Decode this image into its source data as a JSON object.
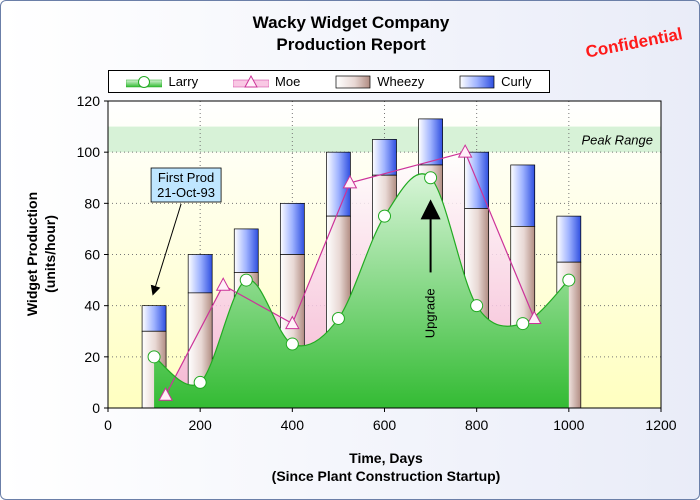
{
  "chart_data": {
    "type": "bar",
    "title": "Wacky Widget Company",
    "subtitle": "Production Report",
    "stamp": "Confidential",
    "xlabel": "Time, Days",
    "xlabel2": "(Since Plant Construction Startup)",
    "ylabel": "Widget Production",
    "ylabel2": "(units/hour)",
    "xlim": [
      0,
      1200
    ],
    "ylim": [
      0,
      120
    ],
    "xticks": [
      "0",
      "200",
      "400",
      "600",
      "800",
      "1000",
      "1200"
    ],
    "yticks": [
      "0",
      "20",
      "40",
      "60",
      "80",
      "100",
      "120"
    ],
    "grid": true,
    "legend_position": "top",
    "legend": [
      "Larry",
      "Moe",
      "Wheezy",
      "Curly"
    ],
    "colors": {
      "larry_fill_top": "#d8f5d8",
      "larry_fill_bottom": "#33bb33",
      "larry_line": "#22aa22",
      "moe_line": "#cc3399",
      "moe_fill": "#f9c8e4",
      "wheezy_top": "#ffffff",
      "wheezy_bottom": "#c9a9a0",
      "curly_top": "#ffffff",
      "curly_bottom": "#4466ee",
      "plot_bg_top": "#ffffff",
      "plot_bg_bottom": "#ffffc0",
      "peak_band": "#d7f2d7",
      "stamp_color": "#ff1a1a",
      "note_bg": "#bfe6ff"
    },
    "series": [
      {
        "name": "Larry",
        "kind": "spline-area",
        "points": [
          [
            100,
            20
          ],
          [
            200,
            10
          ],
          [
            300,
            50
          ],
          [
            400,
            25
          ],
          [
            500,
            35
          ],
          [
            600,
            75
          ],
          [
            700,
            90
          ],
          [
            800,
            40
          ],
          [
            900,
            33
          ],
          [
            1000,
            50
          ]
        ]
      },
      {
        "name": "Moe",
        "kind": "line-area",
        "points": [
          [
            125,
            5
          ],
          [
            250,
            48
          ],
          [
            400,
            33
          ],
          [
            525,
            88
          ],
          [
            775,
            100
          ],
          [
            925,
            35
          ]
        ]
      },
      {
        "name": "Wheezy",
        "kind": "stacked-bar-base",
        "x": [
          100,
          200,
          300,
          400,
          500,
          600,
          700,
          800,
          900,
          1000
        ],
        "values": [
          30,
          45,
          53,
          60,
          75,
          91,
          95,
          78,
          71,
          57
        ]
      },
      {
        "name": "Curly",
        "kind": "stacked-bar-top",
        "x": [
          100,
          200,
          300,
          400,
          500,
          600,
          700,
          800,
          900,
          1000
        ],
        "values": [
          40,
          60,
          70,
          80,
          100,
          105,
          113,
          100,
          95,
          75
        ]
      }
    ],
    "bands": [
      {
        "label": "Peak Range",
        "from": 100,
        "to": 110
      }
    ],
    "annotations": [
      {
        "name": "first-prod-note",
        "lines": [
          "First Prod",
          "21-Oct-93"
        ],
        "x": 100,
        "y": 45
      },
      {
        "name": "upgrade-note",
        "text": "Upgrade",
        "x": 700,
        "y": 80
      }
    ]
  }
}
